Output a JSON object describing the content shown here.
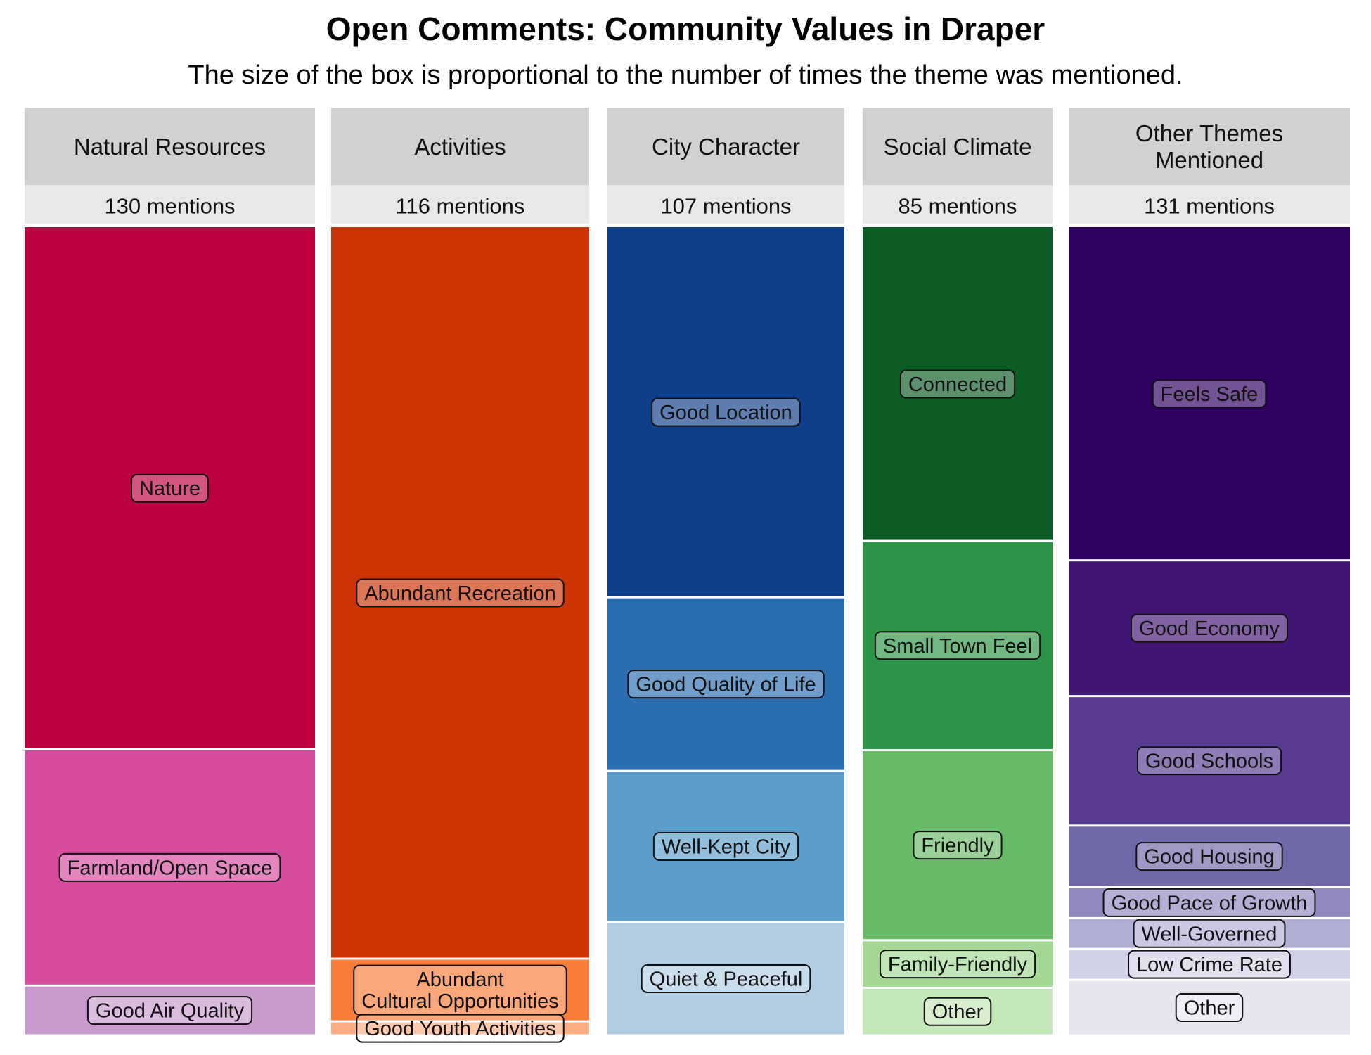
{
  "chart_data": {
    "type": "treemap",
    "title": "Open Comments: Community Values in Draper",
    "subtitle": "The size of the box is proportional to the number of times the theme was mentioned.",
    "columns": [
      {
        "name": "Natural Resources",
        "mentions_label": "130 mentions",
        "total": 130,
        "items": [
          {
            "label": "Nature",
            "value": 84,
            "color": "#bd0042"
          },
          {
            "label": "Farmland/Open Space",
            "value": 38,
            "color": "#d54b9e"
          },
          {
            "label": "Good Air Quality",
            "value": 8,
            "color": "#c89bcc"
          }
        ]
      },
      {
        "name": "Activities",
        "mentions_label": "116 mentions",
        "total": 116,
        "items": [
          {
            "label": "Abundant Recreation",
            "value": 105,
            "color": "#cc3305"
          },
          {
            "label": "Abundant\nCultural Opportunities",
            "value": 9,
            "color": "#f87c3a"
          },
          {
            "label": "Good Youth Activities",
            "value": 2,
            "color": "#fcae82"
          }
        ]
      },
      {
        "name": "City Character",
        "mentions_label": "107 mentions",
        "total": 107,
        "items": [
          {
            "label": "Good Location",
            "value": 49,
            "color": "#0f3e8b"
          },
          {
            "label": "Good Quality of Life",
            "value": 23,
            "color": "#2a6eb0"
          },
          {
            "label": "Well-Kept City",
            "value": 20,
            "color": "#5a9ecb"
          },
          {
            "label": "Quiet & Peaceful",
            "value": 15,
            "color": "#b0cde2"
          }
        ]
      },
      {
        "name": "Social Climate",
        "mentions_label": "85 mentions",
        "total": 85,
        "items": [
          {
            "label": "Connected",
            "value": 33,
            "color": "#0c5c26"
          },
          {
            "label": "Small Town Feel",
            "value": 22,
            "color": "#2b9447"
          },
          {
            "label": "Friendly",
            "value": 20,
            "color": "#67bb67"
          },
          {
            "label": "Family-Friendly",
            "value": 5,
            "color": "#a3d894"
          },
          {
            "label": "Other",
            "value": 5,
            "color": "#c4e8b7"
          }
        ]
      },
      {
        "name": "Other Themes\nMentioned",
        "mentions_label": "131 mentions",
        "total": 131,
        "items": [
          {
            "label": "Feels Safe",
            "value": 54,
            "color": "#2d0062"
          },
          {
            "label": "Good Economy",
            "value": 22,
            "color": "#421676"
          },
          {
            "label": "Good Schools",
            "value": 21,
            "color": "#583c92"
          },
          {
            "label": "Good Housing",
            "value": 10,
            "color": "#6f68a9"
          },
          {
            "label": "Good Pace of Growth",
            "value": 5,
            "color": "#9088bf"
          },
          {
            "label": "Well-Governed",
            "value": 5,
            "color": "#b1aed5"
          },
          {
            "label": "Low Crime Rate",
            "value": 5,
            "color": "#cfcfe5"
          },
          {
            "label": "Other",
            "value": 9,
            "color": "#e7e5f0"
          }
        ]
      }
    ]
  }
}
